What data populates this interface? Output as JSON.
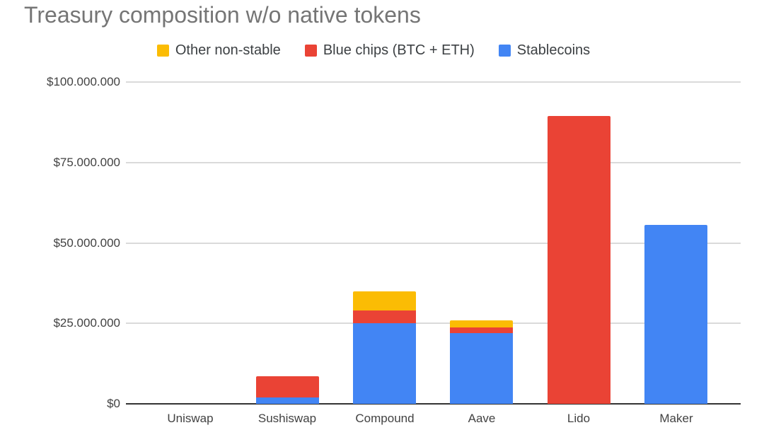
{
  "chart_data": {
    "type": "bar",
    "stacked": true,
    "title": "Treasury composition w/o native tokens",
    "xlabel": "",
    "ylabel": "",
    "categories": [
      "Uniswap",
      "Sushiswap",
      "Compound",
      "Aave",
      "Lido",
      "Maker"
    ],
    "series": [
      {
        "name": "Other non-stable",
        "color": "#FBBC04",
        "values": [
          0,
          0,
          6000000,
          2200000,
          0,
          0
        ]
      },
      {
        "name": "Blue chips (BTC + ETH)",
        "color": "#EA4335",
        "values": [
          0,
          6500000,
          4000000,
          1800000,
          89500000,
          0
        ]
      },
      {
        "name": "Stablecoins",
        "color": "#4285F4",
        "values": [
          0,
          2000000,
          25000000,
          22000000,
          0,
          55500000
        ]
      }
    ],
    "stack_order_bottom_to_top": [
      "Stablecoins",
      "Blue chips (BTC + ETH)",
      "Other non-stable"
    ],
    "ylim": [
      0,
      100000000
    ],
    "y_ticks": [
      {
        "value": 0,
        "label": "$0"
      },
      {
        "value": 25000000,
        "label": "$25.000.000"
      },
      {
        "value": 50000000,
        "label": "$50.000.000"
      },
      {
        "value": 75000000,
        "label": "$75.000.000"
      },
      {
        "value": 100000000,
        "label": "$100.000.000"
      }
    ],
    "legend_position": "top",
    "grid": true
  },
  "colors": {
    "background": "#ffffff",
    "title_text": "#757575",
    "axis_text": "#424242",
    "legend_text": "#3c4043",
    "gridline": "#dadada",
    "axis_line": "#333333"
  }
}
